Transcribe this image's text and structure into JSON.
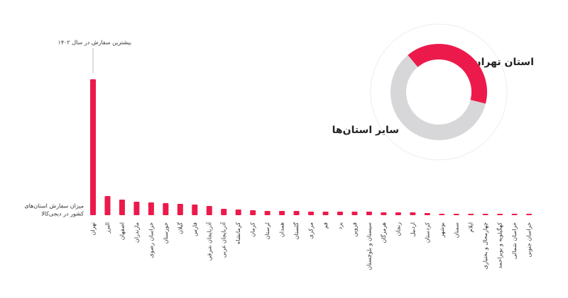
{
  "chart_data": [
    {
      "type": "bar",
      "annotation": "بیشترین سفارش در سال ۱۴۰۲",
      "y_label": [
        "میزان سفارش استان‌های",
        "کشور در دیجی‌کالا"
      ],
      "categories": [
        "تهران",
        "البرز",
        "اصفهان",
        "مازندران",
        "خراسان رضوی",
        "خوزستان",
        "گیلان",
        "فارس",
        "آذربایجان شرقی",
        "آذربایجان غربی",
        "کرمانشاه",
        "کرمان",
        "لرستان",
        "همدان",
        "گلستان",
        "مرکزی",
        "قم",
        "یزد",
        "قزوین",
        "سیستان و بلوچستان",
        "هرمزگان",
        "زنجان",
        "اردبیل",
        "کردستان",
        "بوشهر",
        "سمنان",
        "ایلام",
        "چهارمحال و بختیاری",
        "کهگیلویه و بویراحمد",
        "خراسان شمالی",
        "خراسان جنوبی"
      ],
      "values": [
        192,
        27,
        22,
        19,
        18,
        17,
        16,
        15,
        13,
        9,
        8,
        7,
        6,
        6,
        6,
        5,
        5,
        5,
        5,
        5,
        4,
        4,
        4,
        3,
        2,
        2,
        2,
        2,
        2,
        2,
        2
      ],
      "color": "#ec1a4b"
    },
    {
      "type": "pie",
      "categories": [
        "استان تهران",
        "سایر استان‌ها"
      ],
      "values": [
        40,
        60
      ],
      "colors": [
        "#ec1a4b",
        "#d7d7d9"
      ]
    }
  ]
}
